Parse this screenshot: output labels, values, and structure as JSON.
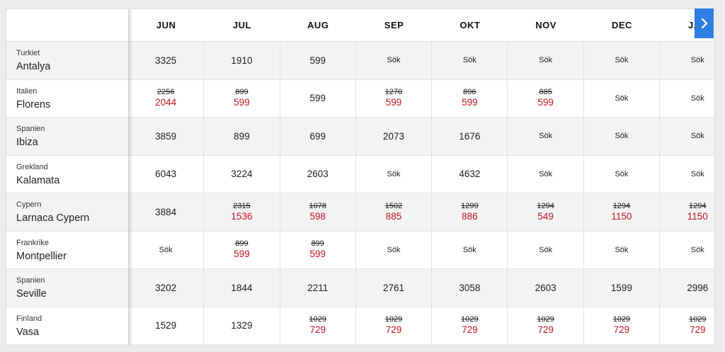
{
  "months": [
    "JUN",
    "JUL",
    "AUG",
    "SEP",
    "OKT",
    "NOV",
    "DEC",
    "JAN"
  ],
  "next_icon": "chevron-right-icon",
  "colors": {
    "accent": "#2e7de1",
    "discount": "#c0141b"
  },
  "rows": [
    {
      "country": "Turkiet",
      "city": "Antalya",
      "cells": [
        {
          "price": "3325"
        },
        {
          "price": "1910"
        },
        {
          "price": "599"
        },
        {
          "price": "Sök"
        },
        {
          "price": "Sök"
        },
        {
          "price": "Sök"
        },
        {
          "price": "Sök"
        },
        {
          "price": "Sök"
        }
      ]
    },
    {
      "country": "Italien",
      "city": "Florens",
      "cells": [
        {
          "old": "2256",
          "new": "2044"
        },
        {
          "old": "899",
          "new": "599"
        },
        {
          "price": "599"
        },
        {
          "old": "1270",
          "new": "599"
        },
        {
          "old": "896",
          "new": "599"
        },
        {
          "old": "885",
          "new": "599"
        },
        {
          "price": "Sök"
        },
        {
          "price": "Sök"
        }
      ]
    },
    {
      "country": "Spanien",
      "city": "Ibiza",
      "cells": [
        {
          "price": "3859"
        },
        {
          "price": "899"
        },
        {
          "price": "699"
        },
        {
          "price": "2073"
        },
        {
          "price": "1676"
        },
        {
          "price": "Sök"
        },
        {
          "price": "Sök"
        },
        {
          "price": "Sök"
        }
      ]
    },
    {
      "country": "Grekland",
      "city": "Kalamata",
      "cells": [
        {
          "price": "6043"
        },
        {
          "price": "3224"
        },
        {
          "price": "2603"
        },
        {
          "price": "Sök"
        },
        {
          "price": "4632"
        },
        {
          "price": "Sök"
        },
        {
          "price": "Sök"
        },
        {
          "price": "Sök"
        }
      ]
    },
    {
      "country": "Cypern",
      "city": "Larnaca Cypern",
      "cells": [
        {
          "price": "3884"
        },
        {
          "old": "2315",
          "new": "1536"
        },
        {
          "old": "1078",
          "new": "598"
        },
        {
          "old": "1502",
          "new": "885"
        },
        {
          "old": "1299",
          "new": "886"
        },
        {
          "old": "1294",
          "new": "549"
        },
        {
          "old": "1294",
          "new": "1150"
        },
        {
          "old": "1294",
          "new": "1150"
        }
      ]
    },
    {
      "country": "Frankrike",
      "city": "Montpellier",
      "cells": [
        {
          "price": "Sök"
        },
        {
          "old": "899",
          "new": "599"
        },
        {
          "old": "899",
          "new": "599"
        },
        {
          "price": "Sök"
        },
        {
          "price": "Sök"
        },
        {
          "price": "Sök"
        },
        {
          "price": "Sök"
        },
        {
          "price": "Sök"
        }
      ]
    },
    {
      "country": "Spanien",
      "city": "Seville",
      "cells": [
        {
          "price": "3202"
        },
        {
          "price": "1844"
        },
        {
          "price": "2211"
        },
        {
          "price": "2761"
        },
        {
          "price": "3058"
        },
        {
          "price": "2603"
        },
        {
          "price": "1599"
        },
        {
          "price": "2996"
        }
      ]
    },
    {
      "country": "Finland",
      "city": "Vasa",
      "cells": [
        {
          "price": "1529"
        },
        {
          "price": "1329"
        },
        {
          "old": "1029",
          "new": "729"
        },
        {
          "old": "1029",
          "new": "729"
        },
        {
          "old": "1029",
          "new": "729"
        },
        {
          "old": "1029",
          "new": "729"
        },
        {
          "old": "1029",
          "new": "729"
        },
        {
          "old": "1029",
          "new": "729"
        }
      ]
    }
  ]
}
